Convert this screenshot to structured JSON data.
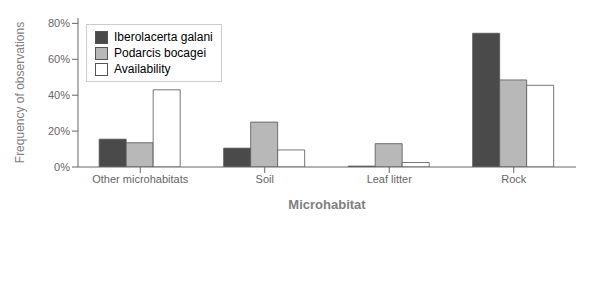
{
  "chart_data": {
    "type": "bar",
    "xlabel": "Microhabitat",
    "ylabel": "Frequency of observations",
    "categories": [
      "Other microhabitats",
      "Soil",
      "Leaf litter",
      "Rock"
    ],
    "series": [
      {
        "name": "Iberolacerta galani",
        "color": "#4a4a4a",
        "values": [
          0.155,
          0.105,
          0.005,
          0.745
        ]
      },
      {
        "name": "Podarcis bocagei",
        "color": "#b8b8b8",
        "values": [
          0.135,
          0.25,
          0.13,
          0.485
        ]
      },
      {
        "name": "Availability",
        "color": "#ffffff",
        "values": [
          0.43,
          0.095,
          0.025,
          0.455
        ]
      }
    ],
    "ylim": [
      0,
      0.83
    ],
    "yticks": [
      {
        "value": 0.0,
        "label": "0%"
      },
      {
        "value": 0.2,
        "label": "20%"
      },
      {
        "value": 0.4,
        "label": "40%"
      },
      {
        "value": 0.6,
        "label": "60%"
      },
      {
        "value": 0.8,
        "label": "80%"
      }
    ],
    "grid": false,
    "legend": "upper left"
  }
}
